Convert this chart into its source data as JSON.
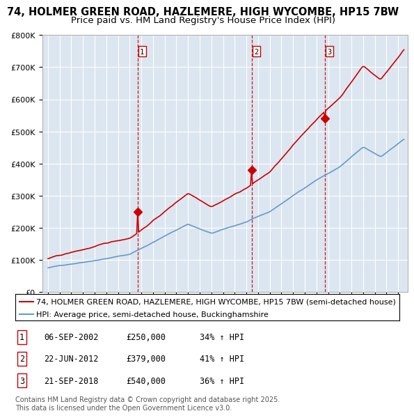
{
  "title_line1": "74, HOLMER GREEN ROAD, HAZLEMERE, HIGH WYCOMBE, HP15 7BW",
  "title_line2": "Price paid vs. HM Land Registry's House Price Index (HPI)",
  "ylim": [
    0,
    800000
  ],
  "xlim_start": 1994.5,
  "xlim_end": 2025.8,
  "sale_color": "#cc0000",
  "hpi_color": "#6699cc",
  "plot_bg_color": "#dce6f0",
  "grid_color": "#ffffff",
  "vline_color": "#cc0000",
  "sales": [
    {
      "date_num": 2002.68,
      "price": 250000,
      "label": "1"
    },
    {
      "date_num": 2012.47,
      "price": 379000,
      "label": "2"
    },
    {
      "date_num": 2018.72,
      "price": 540000,
      "label": "3"
    }
  ],
  "legend_line1": "74, HOLMER GREEN ROAD, HAZLEMERE, HIGH WYCOMBE, HP15 7BW (semi-detached house)",
  "legend_line2": "HPI: Average price, semi-detached house, Buckinghamshire",
  "table_entries": [
    {
      "num": "1",
      "date": "06-SEP-2002",
      "price": "£250,000",
      "change": "34% ↑ HPI"
    },
    {
      "num": "2",
      "date": "22-JUN-2012",
      "price": "£379,000",
      "change": "41% ↑ HPI"
    },
    {
      "num": "3",
      "date": "21-SEP-2018",
      "price": "£540,000",
      "change": "36% ↑ HPI"
    }
  ],
  "footnote": "Contains HM Land Registry data © Crown copyright and database right 2025.\nThis data is licensed under the Open Government Licence v3.0.",
  "title_fontsize": 10.5,
  "subtitle_fontsize": 9.5,
  "tick_fontsize": 8,
  "legend_fontsize": 8,
  "table_fontsize": 8.5
}
